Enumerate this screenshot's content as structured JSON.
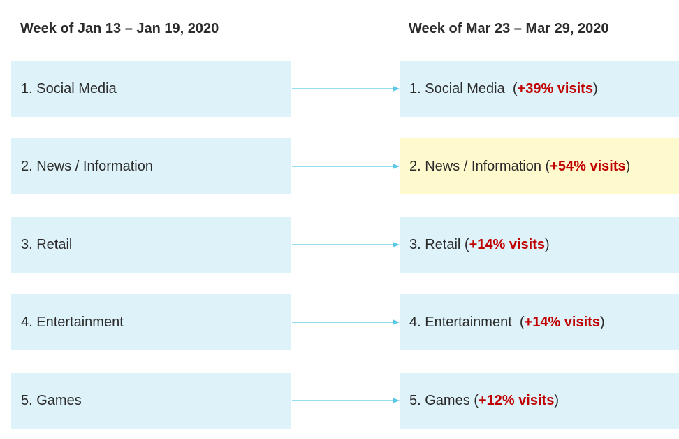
{
  "headings": {
    "before": "Week of Jan 13 – Jan 19, 2020",
    "after": "Week of Mar 23 – Mar 29, 2020"
  },
  "before_ranks": [
    {
      "label": "1. Social Media"
    },
    {
      "label": "2. News / Information"
    },
    {
      "label": "3. Retail"
    },
    {
      "label": "4. Entertainment"
    },
    {
      "label": "5. Games"
    }
  ],
  "after_ranks": [
    {
      "label": "1. Social Media",
      "open": "  (",
      "change": "+39% visits",
      "close": ")",
      "highlighted": false
    },
    {
      "label": "2. News / Information",
      "open": " (",
      "change": "+54% visits",
      "close": ")",
      "highlighted": true
    },
    {
      "label": "3. Retail",
      "open": " (",
      "change": "+14% visits",
      "close": ")",
      "highlighted": false
    },
    {
      "label": "4. Entertainment",
      "open": "  (",
      "change": "+14% visits",
      "close": ")",
      "highlighted": false
    },
    {
      "label": "5. Games",
      "open": " (",
      "change": "+12% visits",
      "close": ")",
      "highlighted": false
    }
  ],
  "colors": {
    "box_fill": "#ddf2f9",
    "highlight_fill": "#fffacd",
    "change_text": "#c00000",
    "arrow": "#5bc8e6"
  }
}
